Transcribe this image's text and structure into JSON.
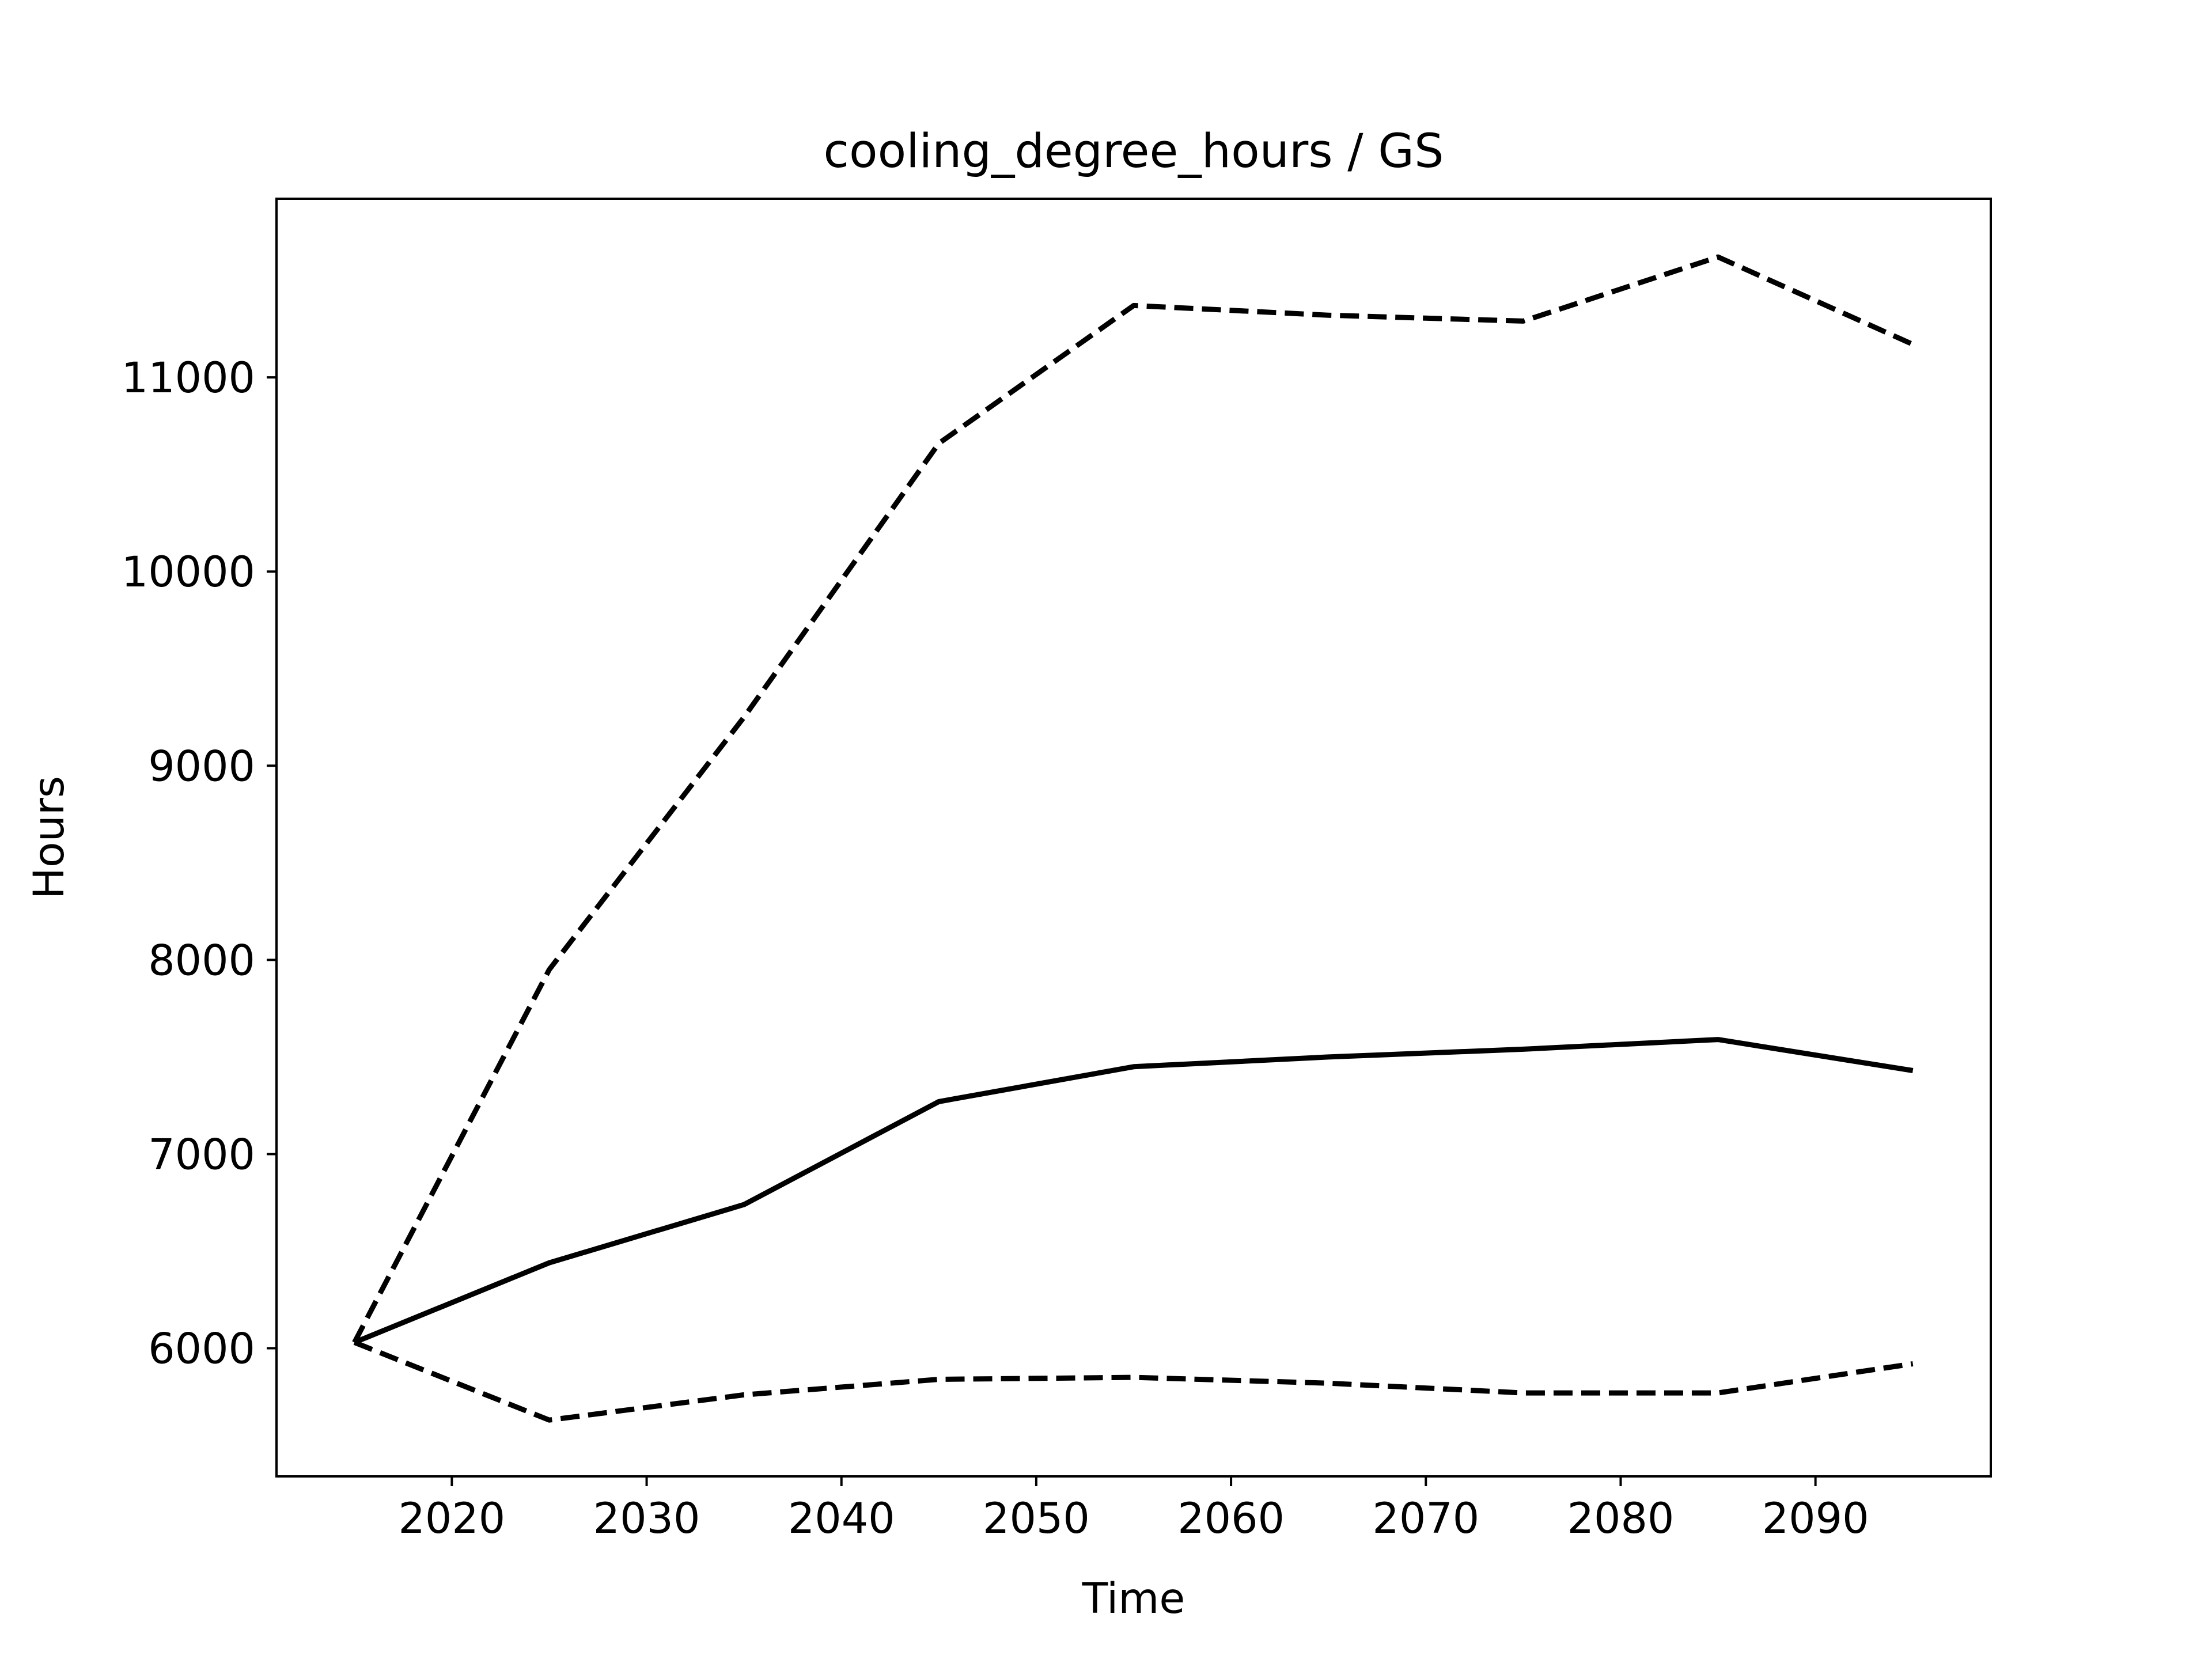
{
  "chart_data": {
    "type": "line",
    "title": "cooling_degree_hours / GS",
    "xlabel": "Time",
    "ylabel": "Hours",
    "xlim": [
      2011,
      2099
    ],
    "ylim": [
      5340,
      11920
    ],
    "x_ticks": [
      2020,
      2030,
      2040,
      2050,
      2060,
      2070,
      2080,
      2090
    ],
    "y_ticks": [
      6000,
      7000,
      8000,
      9000,
      10000,
      11000
    ],
    "grid": false,
    "legend": "none",
    "x": [
      2015,
      2025,
      2035,
      2045,
      2055,
      2065,
      2075,
      2085,
      2095
    ],
    "series": [
      {
        "style": "solid",
        "color": "#000000",
        "values": [
          6030,
          6440,
          6740,
          7270,
          7450,
          7500,
          7540,
          7590,
          7430
        ]
      },
      {
        "style": "dashed",
        "color": "#000000",
        "values": [
          6030,
          7950,
          9250,
          10660,
          11370,
          11320,
          11290,
          11620,
          11170
        ]
      },
      {
        "style": "dashed",
        "color": "#000000",
        "values": [
          6030,
          5630,
          5760,
          5840,
          5850,
          5820,
          5770,
          5770,
          5920
        ]
      }
    ]
  }
}
